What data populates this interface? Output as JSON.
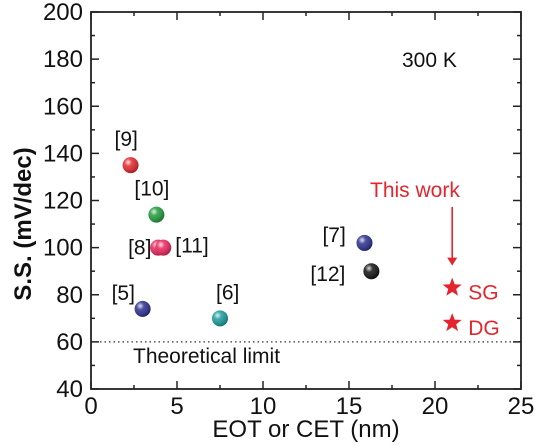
{
  "chart_data": {
    "type": "scatter",
    "title": "",
    "xlabel": "EOT or CET (nm)",
    "ylabel": "S.S. (mV/dec)",
    "xlim": [
      0,
      25
    ],
    "ylim": [
      40,
      200
    ],
    "xticks": [
      0,
      5,
      10,
      15,
      20,
      25
    ],
    "yticks": [
      40,
      60,
      80,
      100,
      120,
      140,
      160,
      180,
      200
    ],
    "temperature_label": "300 K",
    "theoretical_limit": {
      "value": 60,
      "label": "Theoretical limit",
      "style": "dotted"
    },
    "reference_points": [
      {
        "label": "[9]",
        "x": 2.3,
        "y": 135,
        "color": "#e2262c"
      },
      {
        "label": "[10]",
        "x": 3.8,
        "y": 114,
        "color": "#1f9a3a"
      },
      {
        "label": "[8]",
        "x": 3.9,
        "y": 100,
        "color": "#e8245a"
      },
      {
        "label": "[11]",
        "x": 4.2,
        "y": 100,
        "color": "#e8245a"
      },
      {
        "label": "[5]",
        "x": 3.0,
        "y": 74,
        "color": "#2b2f8c"
      },
      {
        "label": "[6]",
        "x": 7.5,
        "y": 70,
        "color": "#1a9a9a"
      },
      {
        "label": "[7]",
        "x": 15.9,
        "y": 102,
        "color": "#2b2f8c"
      },
      {
        "label": "[12]",
        "x": 16.3,
        "y": 90,
        "color": "#111111"
      }
    ],
    "this_work": {
      "label": "This work",
      "color": "#e3262e",
      "points": [
        {
          "label": "SG",
          "x": 21,
          "y": 83
        },
        {
          "label": "DG",
          "x": 21,
          "y": 68
        }
      ]
    }
  }
}
